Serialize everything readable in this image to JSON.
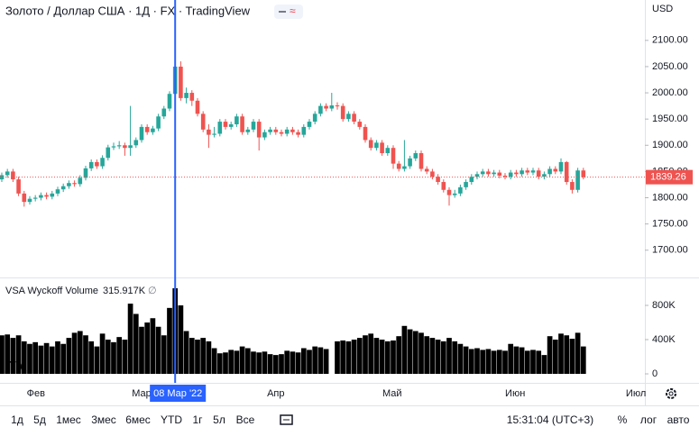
{
  "header": {
    "title": "Золото / Доллар США · 1Д · FX · TradingView",
    "currency": "USD"
  },
  "chart_data": {
    "type": "candlestick",
    "xlim": [
      -0.32,
      115
    ],
    "xticks": [
      {
        "value": 6.1,
        "label": "Фев"
      },
      {
        "value": 25,
        "label": "Мар"
      },
      {
        "value": 49,
        "label": "Апр"
      },
      {
        "value": 69.8,
        "label": "Май"
      },
      {
        "value": 91.8,
        "label": "Июн"
      },
      {
        "value": 113.4,
        "label": "Июл"
      }
    ],
    "ylim": [
      1648,
      2177
    ],
    "yticks": [
      {
        "value": 2100,
        "label": "2100.00"
      },
      {
        "value": 2050,
        "label": "2050.00"
      },
      {
        "value": 2000,
        "label": "2000.00"
      },
      {
        "value": 1950,
        "label": "1950.00"
      },
      {
        "value": 1900,
        "label": "1900.00"
      },
      {
        "value": 1850,
        "label": "1850.00"
      },
      {
        "value": 1800,
        "label": "1800.00"
      },
      {
        "value": 1750,
        "label": "1750.00"
      },
      {
        "value": 1700,
        "label": "1700.00"
      }
    ],
    "up_color": "#26a69a",
    "down_color": "#ef5350",
    "open": [
      1835,
      1843,
      1850,
      1835,
      1808,
      1792,
      1798,
      1800,
      1805,
      1802,
      1808,
      1816,
      1822,
      1828,
      1826,
      1838,
      1856,
      1868,
      1860,
      1876,
      1896,
      1898,
      1900,
      1895,
      1900,
      1910,
      1935,
      1925,
      1932,
      1955,
      1970,
      1998,
      2050,
      1990,
      2000,
      1985,
      1960,
      1930,
      1920,
      1922,
      1945,
      1935,
      1940,
      1955,
      1925,
      1930,
      1945,
      1915,
      1925,
      1930,
      1925,
      1922,
      1930,
      1925,
      1920,
      1935,
      1945,
      1960,
      1975,
      1970,
      1976,
      1975,
      1950,
      1960,
      1945,
      1935,
      1910,
      1895,
      1905,
      1885,
      1895,
      1865,
      1855,
      1860,
      1875,
      1885,
      1855,
      1850,
      1840,
      1830,
      1815,
      1805,
      1808,
      1820,
      1830,
      1840,
      1845,
      1850,
      1845,
      1848,
      1842,
      1840,
      1848,
      1845,
      1852,
      1848,
      1852,
      1840,
      1845,
      1855,
      1850,
      1868,
      1830,
      1815,
      1852
    ],
    "high": [
      1848,
      1855,
      1855,
      1840,
      1813,
      1803,
      1805,
      1810,
      1810,
      1813,
      1821,
      1827,
      1833,
      1833,
      1843,
      1861,
      1873,
      1873,
      1881,
      1901,
      1905,
      1908,
      1905,
      1975,
      1915,
      1940,
      1940,
      1937,
      1960,
      1975,
      2003,
      2070,
      2060,
      2010,
      2005,
      1990,
      1965,
      1940,
      1935,
      1950,
      1950,
      1945,
      1960,
      1960,
      1935,
      1950,
      1950,
      1930,
      1935,
      1935,
      1930,
      1935,
      1935,
      1930,
      1940,
      1950,
      1965,
      1980,
      1980,
      2000,
      1982,
      1980,
      1965,
      1965,
      1950,
      1940,
      1915,
      1910,
      1910,
      1900,
      1900,
      1870,
      1910,
      1880,
      1890,
      1890,
      1860,
      1855,
      1845,
      1835,
      1820,
      1815,
      1825,
      1835,
      1845,
      1850,
      1855,
      1855,
      1853,
      1853,
      1847,
      1853,
      1853,
      1857,
      1857,
      1857,
      1857,
      1850,
      1860,
      1860,
      1875,
      1870,
      1835,
      1857,
      1857
    ],
    "low": [
      1830,
      1838,
      1830,
      1803,
      1783,
      1787,
      1793,
      1795,
      1797,
      1797,
      1803,
      1811,
      1817,
      1821,
      1821,
      1833,
      1851,
      1855,
      1855,
      1871,
      1891,
      1893,
      1880,
      1880,
      1895,
      1905,
      1920,
      1920,
      1927,
      1950,
      1965,
      1993,
      1985,
      1980,
      1975,
      1955,
      1925,
      1895,
      1915,
      1917,
      1930,
      1930,
      1935,
      1920,
      1920,
      1925,
      1890,
      1910,
      1920,
      1920,
      1917,
      1917,
      1920,
      1915,
      1915,
      1930,
      1940,
      1955,
      1965,
      1965,
      1968,
      1945,
      1945,
      1940,
      1930,
      1905,
      1890,
      1890,
      1880,
      1880,
      1855,
      1850,
      1850,
      1855,
      1870,
      1850,
      1845,
      1835,
      1825,
      1810,
      1785,
      1800,
      1803,
      1815,
      1825,
      1835,
      1840,
      1840,
      1840,
      1837,
      1835,
      1835,
      1840,
      1840,
      1843,
      1843,
      1835,
      1835,
      1840,
      1845,
      1845,
      1825,
      1808,
      1810,
      1835
    ],
    "close": [
      1843,
      1850,
      1835,
      1808,
      1792,
      1798,
      1800,
      1805,
      1802,
      1808,
      1816,
      1822,
      1828,
      1826,
      1838,
      1856,
      1868,
      1860,
      1876,
      1896,
      1898,
      1900,
      1895,
      1900,
      1910,
      1935,
      1925,
      1932,
      1955,
      1970,
      1998,
      2050,
      1990,
      2000,
      1985,
      1960,
      1930,
      1920,
      1922,
      1945,
      1935,
      1940,
      1955,
      1925,
      1930,
      1945,
      1915,
      1925,
      1930,
      1925,
      1922,
      1930,
      1925,
      1920,
      1935,
      1945,
      1960,
      1975,
      1970,
      1976,
      1975,
      1950,
      1960,
      1945,
      1935,
      1910,
      1895,
      1905,
      1885,
      1895,
      1865,
      1855,
      1860,
      1875,
      1885,
      1855,
      1850,
      1840,
      1830,
      1815,
      1805,
      1808,
      1820,
      1830,
      1840,
      1845,
      1850,
      1845,
      1848,
      1842,
      1840,
      1848,
      1845,
      1852,
      1848,
      1852,
      1840,
      1845,
      1855,
      1850,
      1868,
      1830,
      1815,
      1852,
      1839.26
    ],
    "last_price": 1839.26,
    "crosshair": {
      "value": 31,
      "label": "08 Мар '22"
    }
  },
  "volume_chart": {
    "type": "bar",
    "title": "VSA Wyckoff Volume",
    "value_label": "315.917K",
    "color": "#000000",
    "ylim": [
      -105,
      1126
    ],
    "yticks": [
      {
        "value": 800,
        "label": "800K"
      },
      {
        "value": 400,
        "label": "400K"
      },
      0
    ],
    "values": [
      450,
      460,
      420,
      450,
      380,
      350,
      370,
      330,
      360,
      320,
      380,
      350,
      420,
      480,
      500,
      450,
      380,
      320,
      470,
      400,
      370,
      430,
      400,
      820,
      700,
      550,
      600,
      650,
      550,
      450,
      770,
      1000,
      800,
      500,
      420,
      400,
      420,
      380,
      300,
      240,
      250,
      280,
      270,
      320,
      300,
      260,
      250,
      260,
      230,
      220,
      230,
      270,
      260,
      250,
      300,
      280,
      320,
      310,
      290,
      null,
      380,
      390,
      380,
      400,
      420,
      450,
      470,
      420,
      400,
      380,
      390,
      440,
      560,
      520,
      500,
      480,
      440,
      420,
      400,
      380,
      420,
      380,
      350,
      320,
      290,
      300,
      280,
      290,
      270,
      280,
      270,
      350,
      320,
      310,
      270,
      280,
      270,
      220,
      440,
      400,
      470,
      450,
      410,
      480,
      320
    ]
  },
  "toolbar": {
    "ranges": [
      "1д",
      "5д",
      "1мес",
      "3мес",
      "6мес",
      "YTD",
      "1г",
      "5л",
      "Все"
    ],
    "time": "15:31:04 (UTC+3)",
    "options": [
      "%",
      "лог",
      "авто"
    ]
  }
}
